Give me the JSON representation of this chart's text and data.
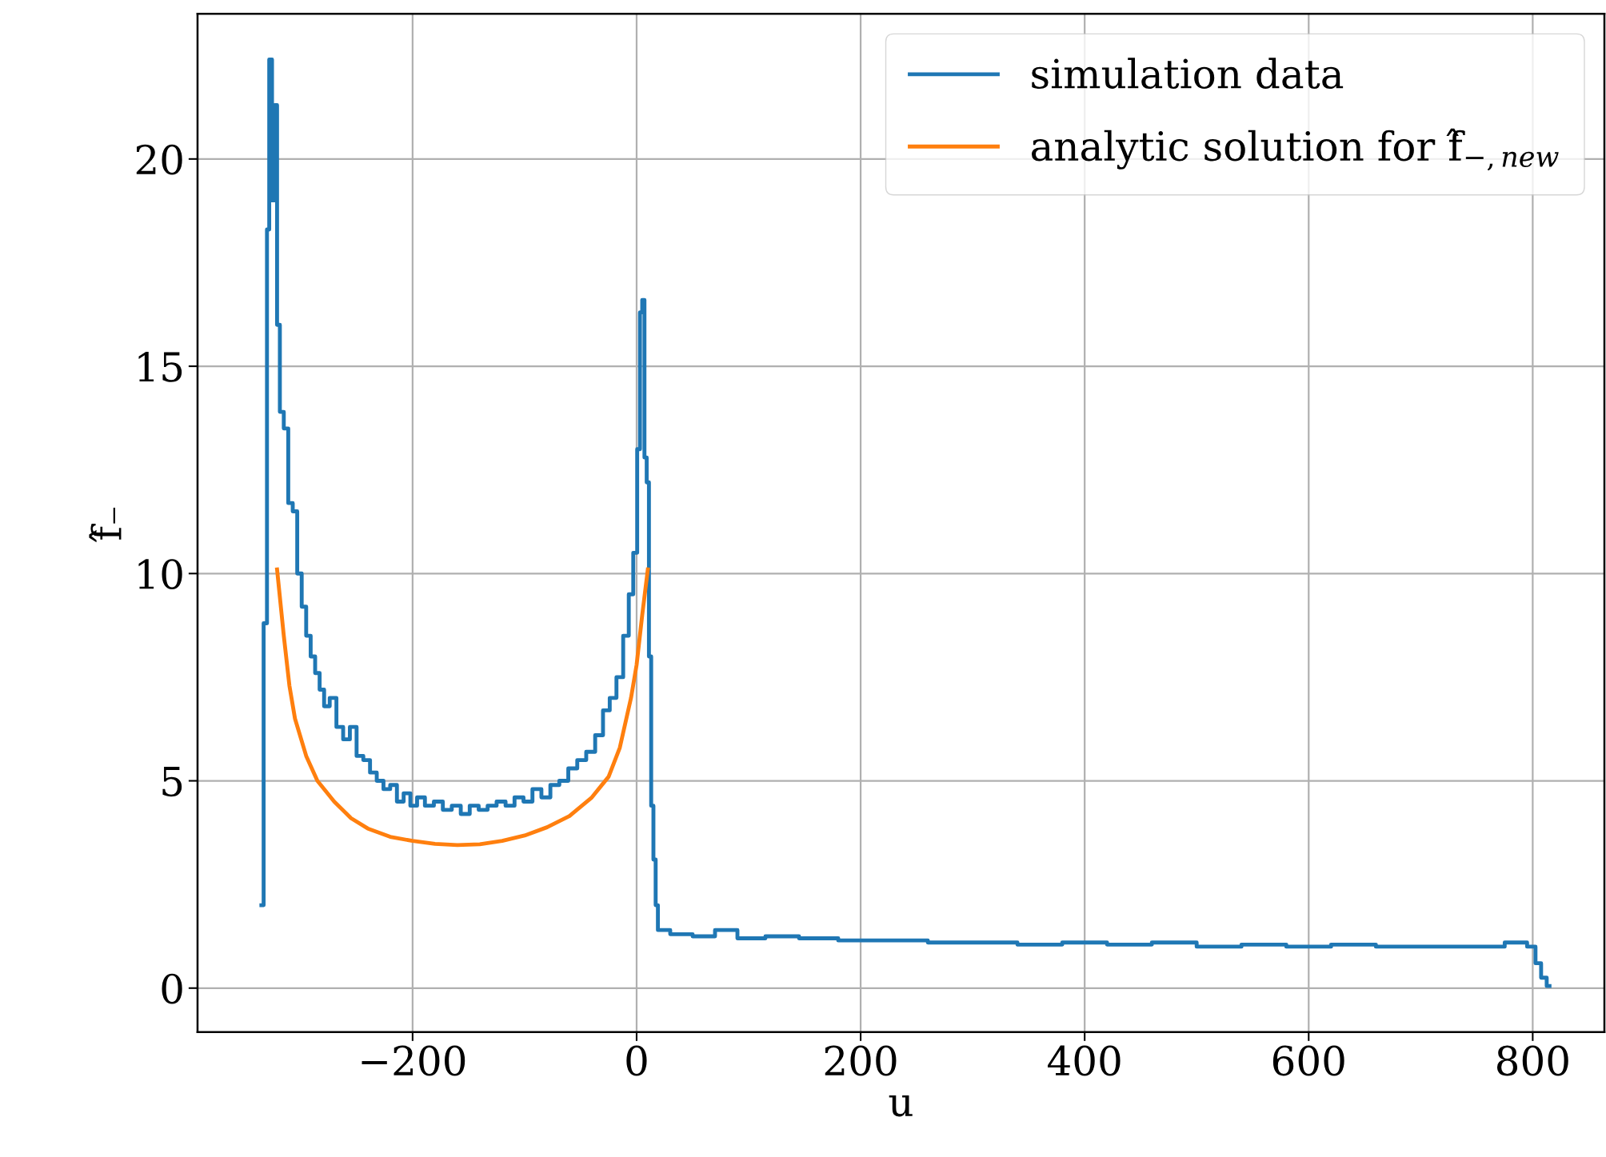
{
  "chart_data": {
    "type": "step",
    "xlabel": "u",
    "ylabel": "f̂₋",
    "xlim": [
      -392,
      864
    ],
    "ylim": [
      -1.06,
      23.5
    ],
    "xticks": [
      {
        "value": -200,
        "label": "−200"
      },
      0,
      200,
      400,
      600,
      800
    ],
    "yticks": [
      0,
      5,
      10,
      15,
      20
    ],
    "grid": true,
    "legend": "top right",
    "series": [
      {
        "name": "simulation data",
        "color": "#1f77b4",
        "x": [
          -335,
          -331,
          -329,
          -327,
          -324,
          -322,
          -320,
          -317,
          -313,
          -309,
          -305,
          -301,
          -297,
          -293,
          -289,
          -285,
          -281,
          -277,
          -271,
          -265,
          -259,
          -253,
          -247,
          -241,
          -235,
          -229,
          -223,
          -217,
          -211,
          -205,
          -199,
          -193,
          -185,
          -177,
          -169,
          -161,
          -153,
          -145,
          -137,
          -129,
          -121,
          -113,
          -105,
          -97,
          -89,
          -81,
          -73,
          -65,
          -57,
          -49,
          -41,
          -33,
          -27,
          -21,
          -15,
          -9,
          -5,
          -1,
          2,
          4,
          6,
          8,
          10,
          12,
          14,
          16,
          18,
          20,
          40,
          60,
          80,
          100,
          130,
          160,
          200,
          240,
          280,
          320,
          360,
          400,
          440,
          480,
          520,
          560,
          600,
          640,
          680,
          720,
          760,
          790,
          800,
          805,
          810,
          815
        ],
        "values": [
          2.0,
          8.8,
          18.3,
          22.4,
          19.0,
          21.3,
          16.0,
          13.9,
          13.5,
          11.7,
          11.5,
          10.0,
          9.2,
          8.5,
          8.0,
          7.6,
          7.2,
          6.8,
          7.0,
          6.3,
          6.0,
          6.3,
          5.6,
          5.5,
          5.2,
          5.0,
          4.8,
          4.9,
          4.5,
          4.7,
          4.4,
          4.6,
          4.4,
          4.5,
          4.3,
          4.4,
          4.2,
          4.4,
          4.3,
          4.4,
          4.5,
          4.4,
          4.6,
          4.5,
          4.8,
          4.6,
          4.9,
          5.0,
          5.3,
          5.5,
          5.7,
          6.1,
          6.7,
          7.0,
          7.5,
          8.5,
          9.5,
          10.5,
          13.0,
          16.3,
          16.6,
          12.8,
          12.2,
          8.0,
          4.4,
          3.1,
          2.0,
          1.4,
          1.3,
          1.25,
          1.4,
          1.2,
          1.25,
          1.2,
          1.15,
          1.15,
          1.1,
          1.1,
          1.05,
          1.1,
          1.05,
          1.1,
          1.0,
          1.05,
          1.0,
          1.05,
          1.0,
          1.0,
          1.0,
          1.1,
          1.0,
          0.6,
          0.25,
          0.05
        ]
      },
      {
        "name": "analytic solution for f̂$_{−,new}$",
        "color": "#ff7f0e",
        "type": "line",
        "x": [
          -321,
          -315,
          -310,
          -305,
          -295,
          -285,
          -270,
          -255,
          -240,
          -220,
          -200,
          -180,
          -160,
          -140,
          -120,
          -100,
          -80,
          -60,
          -40,
          -25,
          -15,
          -5,
          0,
          5,
          10
        ],
        "values": [
          10.1,
          8.5,
          7.3,
          6.5,
          5.6,
          5.0,
          4.5,
          4.1,
          3.85,
          3.65,
          3.55,
          3.48,
          3.45,
          3.47,
          3.55,
          3.68,
          3.88,
          4.15,
          4.6,
          5.1,
          5.8,
          7.0,
          7.8,
          9.0,
          10.1
        ]
      }
    ]
  }
}
